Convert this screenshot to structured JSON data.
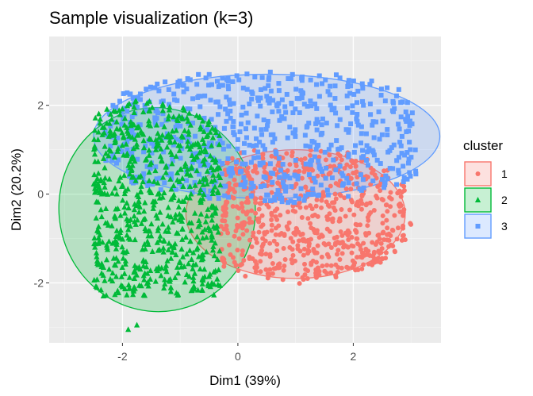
{
  "chart_data": {
    "type": "scatter",
    "title": "Sample visualization (k=3)",
    "xlabel": "Dim1 (39%)",
    "ylabel": "Dim2 (20.2%)",
    "xlim": [
      -3.27,
      3.52
    ],
    "ylim": [
      -3.35,
      3.55
    ],
    "x_ticks": [
      -2,
      0,
      2
    ],
    "y_ticks": [
      -2,
      0,
      2
    ],
    "x_tick_labels": [
      "-2",
      "0",
      "2"
    ],
    "y_tick_labels": [
      "-2",
      "0",
      "2"
    ],
    "grid": true,
    "legend_title": "cluster",
    "legend_position": "right",
    "series": [
      {
        "name": "1",
        "color": "#F8766D",
        "marker": "circle",
        "x_range": [
          -0.3,
          3.2
        ],
        "y_range": [
          -2.6,
          1.0
        ],
        "ellipse": {
          "cx": 1.0,
          "cy": -0.45,
          "rx": 1.9,
          "ry": 1.45,
          "angle": 0
        }
      },
      {
        "name": "2",
        "color": "#00BA38",
        "marker": "triangle",
        "x_range": [
          -2.5,
          -0.3
        ],
        "y_range": [
          -2.3,
          2.8
        ],
        "ellipse": {
          "cx": -1.4,
          "cy": -0.35,
          "rx": 1.7,
          "ry": 2.3,
          "angle": 10
        },
        "outliers": [
          {
            "x": -1.9,
            "y": -3.05
          },
          {
            "x": -1.75,
            "y": -2.95
          }
        ]
      },
      {
        "name": "3",
        "color": "#619CFF",
        "marker": "square",
        "x_range": [
          -2.3,
          3.1
        ],
        "y_range": [
          -0.2,
          3.3
        ],
        "ellipse": {
          "cx": 0.5,
          "cy": 1.3,
          "rx": 3.0,
          "ry": 1.4,
          "angle": 0
        }
      }
    ]
  }
}
